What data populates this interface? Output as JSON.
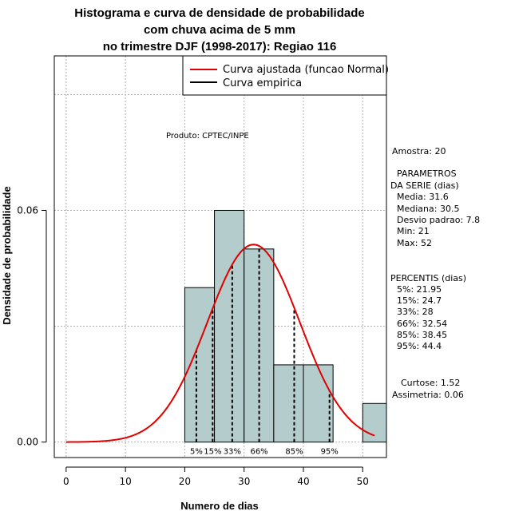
{
  "chart_data": {
    "type": "bar",
    "title_lines": [
      "Histograma e curva de densidade de probabilidade",
      "com chuva acima de 5 mm",
      "no trimestre DJF (1998-2017): Regiao 116"
    ],
    "xlabel": "Numero de dias",
    "ylabel": "Densidade de probabilidade",
    "xlim": [
      -2,
      54
    ],
    "ylim": [
      -0.004,
      0.1
    ],
    "x_ticks": [
      0,
      10,
      20,
      30,
      40,
      50
    ],
    "y_ticks": [
      0.0,
      0.06
    ],
    "y_tick_labels": [
      "0.00",
      "0.06"
    ],
    "grid": true,
    "histogram": {
      "bin_width": 5,
      "bins": [
        {
          "start": 20,
          "end": 25,
          "density": 0.04
        },
        {
          "start": 25,
          "end": 30,
          "density": 0.06
        },
        {
          "start": 30,
          "end": 35,
          "density": 0.05
        },
        {
          "start": 35,
          "end": 40,
          "density": 0.02
        },
        {
          "start": 40,
          "end": 45,
          "density": 0.02
        },
        {
          "start": 45,
          "end": 50,
          "density": 0.0
        },
        {
          "start": 50,
          "end": 55,
          "density": 0.01
        }
      ],
      "fill_color": "#b5cccc"
    },
    "normal_curve": {
      "mean": 31.6,
      "sd": 7.8,
      "x_from": 0,
      "x_to": 52,
      "color": "#e00000"
    },
    "percentile_lines": [
      {
        "label": "5%",
        "value": 21.95
      },
      {
        "label": "15%",
        "value": 24.7
      },
      {
        "label": "33%",
        "value": 28
      },
      {
        "label": "66%",
        "value": 32.54
      },
      {
        "label": "85%",
        "value": 38.45
      },
      {
        "label": "95%",
        "value": 44.4
      }
    ],
    "legend": {
      "position": "top-right",
      "entries": [
        {
          "label": "Curva ajustada (funcao Normal)",
          "color": "#e00000"
        },
        {
          "label": "Curva empirica",
          "color": "#000000"
        }
      ]
    }
  },
  "credit": "Produto: CPTEC/INPE",
  "sidebar": {
    "amostra": "Amostra: 20",
    "params_title_1": "PARAMETROS",
    "params_title_2": "DA SERIE (dias)",
    "params": [
      "Media: 31.6",
      "Mediana: 30.5",
      "Desvio padrao: 7.8",
      "Min: 21",
      "Max: 52"
    ],
    "percentis_title": "PERCENTIS (dias)",
    "percentis": [
      "5%: 21.95",
      "15%: 24.7",
      "33%: 28",
      "66%: 32.54",
      "85%: 38.45",
      "95%: 44.4"
    ],
    "curtose": "Curtose: 1.52",
    "assimetria": "Assimetria: 0.06"
  }
}
